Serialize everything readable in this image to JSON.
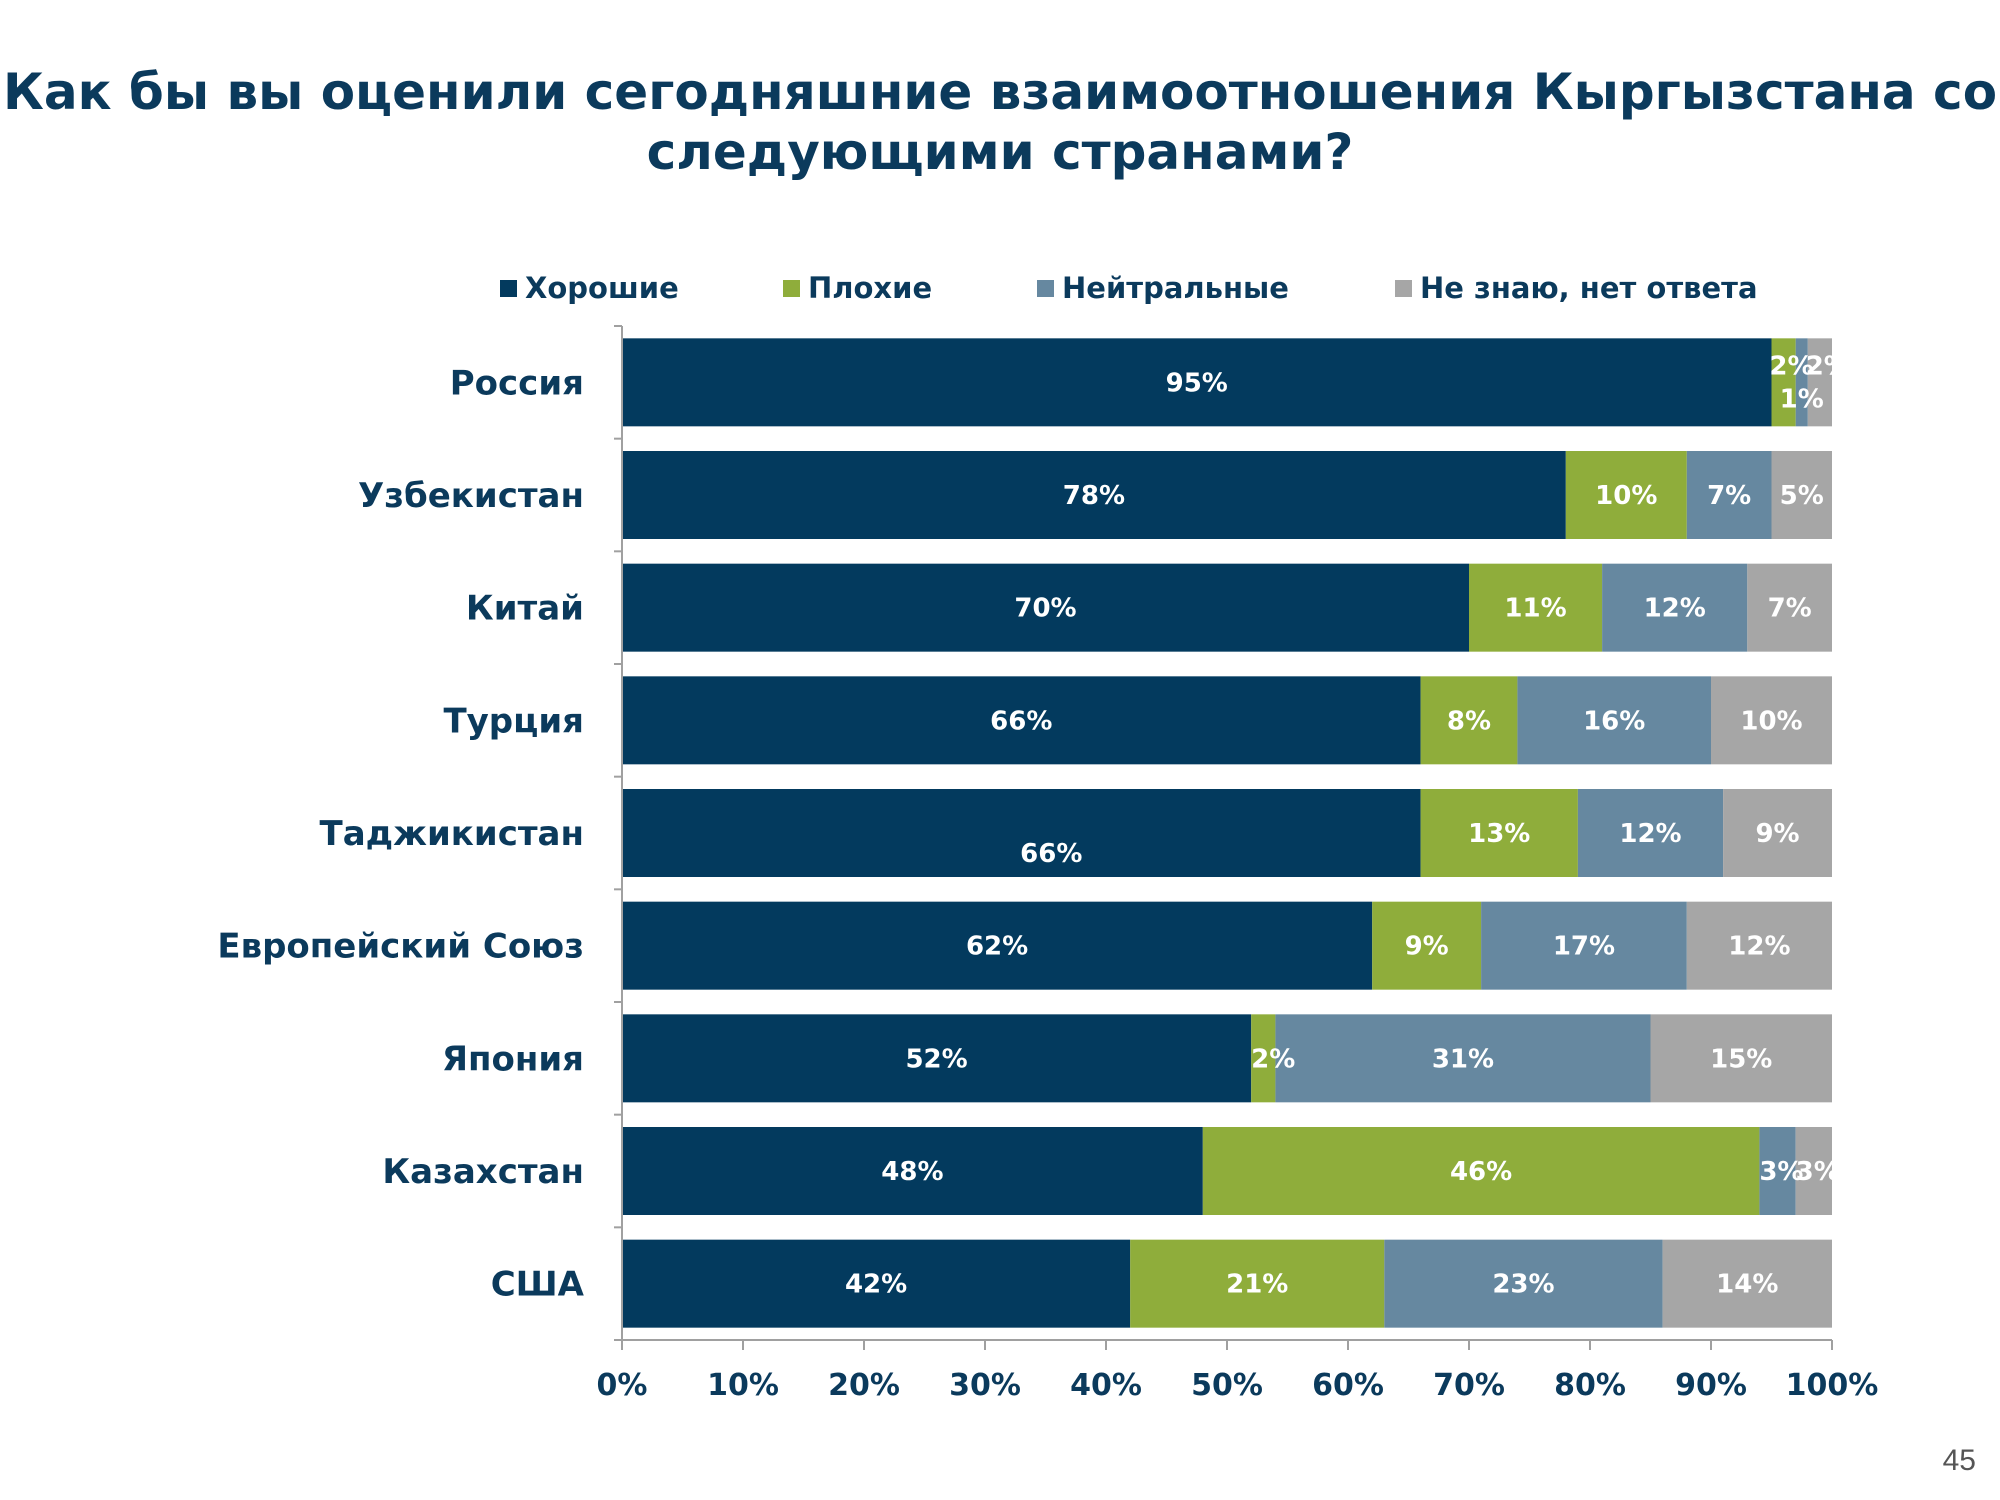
{
  "page_number": "45",
  "chart_data": {
    "type": "bar",
    "orientation": "horizontal",
    "stacked": true,
    "title": "Как бы вы оценили сегодняшние взаимоотношения Кыргызстана со следующими странами?",
    "title_lines": [
      "Как бы вы оценили сегодняшние взаимоотношения Кыргызстана со",
      "следующими странами?"
    ],
    "categories": [
      "Россия",
      "Узбекистан",
      "Китай",
      "Турция",
      "Таджикистан",
      "Европейский Союз",
      "Япония",
      "Казахстан",
      "США"
    ],
    "series": [
      {
        "name": "Хорошие",
        "color": "#033a5e",
        "values": [
          95,
          78,
          70,
          66,
          66,
          62,
          52,
          48,
          42
        ]
      },
      {
        "name": "Плохие",
        "color": "#8fad3b",
        "values": [
          2,
          10,
          11,
          8,
          13,
          9,
          2,
          46,
          21
        ]
      },
      {
        "name": "Нейтральные",
        "color": "#6688a0",
        "values": [
          1,
          7,
          12,
          16,
          12,
          17,
          31,
          3,
          23
        ]
      },
      {
        "name": "Не знаю, нет ответа",
        "color": "#a6a6a6",
        "values": [
          2,
          5,
          7,
          10,
          9,
          12,
          15,
          3,
          14
        ]
      }
    ],
    "xlim": [
      0,
      100
    ],
    "xticks": [
      "0%",
      "10%",
      "20%",
      "30%",
      "40%",
      "50%",
      "60%",
      "70%",
      "80%",
      "90%",
      "100%"
    ],
    "value_suffix": "%",
    "legend_position": "top",
    "grid": false
  }
}
